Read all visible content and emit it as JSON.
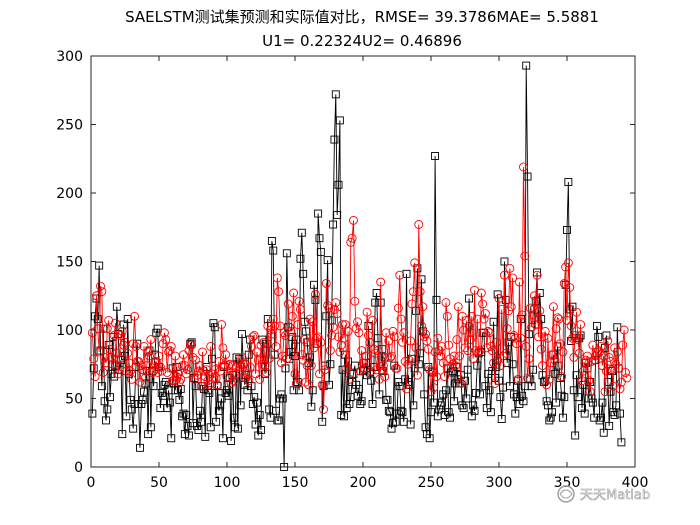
{
  "chart_data": {
    "type": "line",
    "title_lines": [
      "SAELSTM测试集预测和实际值对比，RMSE= 39.3786MAE= 5.5881",
      "U1= 0.22324U2= 0.46896"
    ],
    "xlabel": "",
    "ylabel": "",
    "xlim": [
      0,
      400
    ],
    "ylim": [
      0,
      300
    ],
    "xticks": [
      0,
      50,
      100,
      150,
      200,
      250,
      300,
      350,
      400
    ],
    "yticks": [
      0,
      50,
      100,
      150,
      200,
      250,
      300
    ],
    "grid": false,
    "legend": "none",
    "num_points": 396,
    "series": [
      {
        "role": "actual",
        "color": "#000000",
        "marker": "square",
        "values": [
          39,
          72,
          110,
          123,
          108,
          147,
          85,
          59,
          101,
          48,
          34,
          42,
          89,
          51,
          68,
          95,
          66,
          74,
          117,
          97,
          71,
          78,
          24,
          104,
          81,
          37,
          108,
          68,
          49,
          42,
          28,
          46,
          73,
          90,
          46,
          14,
          46,
          49,
          55,
          61,
          70,
          24,
          85,
          29,
          70,
          59,
          82,
          98,
          101,
          73,
          43,
          54,
          52,
          60,
          62,
          43,
          56,
          47,
          21,
          72,
          61,
          56,
          73,
          56,
          49,
          57,
          37,
          39,
          24,
          38,
          30,
          23,
          90,
          91,
          32,
          65,
          59,
          30,
          27,
          41,
          33,
          59,
          57,
          22,
          73,
          56,
          54,
          29,
          79,
          105,
          102,
          33,
          59,
          41,
          45,
          50,
          21,
          73,
          54,
          56,
          52,
          65,
          19,
          67,
          36,
          29,
          80,
          28,
          79,
          45,
          97,
          75,
          60,
          67,
          56,
          82,
          93,
          59,
          46,
          51,
          31,
          47,
          23,
          38,
          27,
          93,
          78,
          68,
          90,
          108,
          42,
          36,
          165,
          158,
          82,
          41,
          34,
          34,
          50,
          53,
          50,
          0,
          72,
          156,
          102,
          79,
          84,
          95,
          56,
          81,
          93,
          62,
          56,
          152,
          171,
          141,
          106,
          99,
          91,
          76,
          80,
          44,
          56,
          133,
          122,
          90,
          185,
          167,
          157,
          33,
          59,
          74,
          110,
          151,
          60,
          75,
          107,
          177,
          239,
          272,
          184,
          206,
          253,
          38,
          71,
          37,
          82,
          43,
          77,
          46,
          51,
          62,
          68,
          74,
          60,
          52,
          57,
          46,
          48,
          70,
          71,
          76,
          67,
          103,
          69,
          63,
          46,
          73,
          120,
          127,
          94,
          53,
          120,
          86,
          70,
          80,
          49,
          49,
          41,
          40,
          28,
          32,
          74,
          33,
          39,
          62,
          59,
          41,
          40,
          33,
          64,
          141,
          62,
          60,
          31,
          79,
          45,
          72,
          114,
          145,
          75,
          83,
          137,
          99,
          53,
          29,
          24,
          73,
          21,
          40,
          69,
          47,
          227,
          122,
          37,
          42,
          45,
          47,
          53,
          38,
          56,
          72,
          40,
          36,
          69,
          70,
          48,
          61,
          73,
          64,
          61,
          67,
          45,
          43,
          63,
          50,
          71,
          123,
          98,
          37,
          45,
          41,
          54,
          74,
          83,
          53,
          84,
          98,
          98,
          59,
          43,
          68,
          56,
          40,
          70,
          106,
          65,
          73,
          126,
          63,
          51,
          35,
          58,
          150,
          122,
          76,
          91,
          59,
          95,
          75,
          53,
          39,
          51,
          63,
          46,
          108,
          52,
          48,
          59,
          293,
          212,
          97,
          64,
          59,
          71,
          115,
          121,
          142,
          104,
          127,
          108,
          67,
          62,
          63,
          48,
          45,
          34,
          36,
          40,
          82,
          68,
          47,
          88,
          74,
          65,
          52,
          36,
          51,
          133,
          173,
          208,
          115,
          92,
          117,
          56,
          23,
          67,
          51,
          94,
          96,
          43,
          60,
          39,
          76,
          72,
          50,
          62,
          50,
          47,
          36,
          78,
          103,
          95,
          34,
          36,
          47,
          25,
          87,
          96,
          62,
          30,
          55,
          70,
          40,
          38,
          45,
          102,
          72,
          39,
          18
        ]
      },
      {
        "role": "predicted",
        "color": "#ff0000",
        "marker": "circle",
        "values": [
          98,
          79,
          66,
          125,
          101,
          84,
          132,
          128,
          69,
          80,
          76,
          101,
          107,
          86,
          80,
          75,
          96,
          105,
          83,
          68,
          79,
          96,
          99,
          89,
          91,
          70,
          83,
          76,
          70,
          64,
          90,
          110,
          88,
          77,
          77,
          62,
          74,
          71,
          88,
          65,
          74,
          84,
          81,
          93,
          69,
          70,
          76,
          77,
          69,
          81,
          73,
          70,
          90,
          98,
          93,
          69,
          84,
          85,
          88,
          63,
          63,
          81,
          66,
          68,
          62,
          64,
          74,
          82,
          74,
          68,
          71,
          85,
          89,
          89,
          80,
          64,
          78,
          67,
          70,
          74,
          59,
          84,
          70,
          66,
          71,
          63,
          60,
          88,
          68,
          65,
          71,
          65,
          60,
          77,
          70,
          104,
          87,
          74,
          82,
          66,
          74,
          75,
          61,
          74,
          63,
          67,
          73,
          76,
          70,
          73,
          80,
          75,
          76,
          65,
          68,
          63,
          73,
          88,
          95,
          96,
          68,
          84,
          78,
          64,
          89,
          75,
          91,
          74,
          69,
          103,
          79,
          100,
          97,
          108,
          103,
          88,
          138,
          128,
          103,
          76,
          81,
          98,
          96,
          79,
          119,
          102,
          99,
          110,
          127,
          68,
          61,
          104,
          121,
          115,
          82,
          78,
          93,
          62,
          74,
          60,
          108,
          74,
          106,
          87,
          126,
          94,
          95,
          68,
          91,
          60,
          42,
          71,
          134,
          118,
          116,
          85,
          96,
          102,
          115,
          120,
          112,
          95,
          84,
          89,
          104,
          94,
          104,
          72,
          99,
          64,
          164,
          167,
          180,
          121,
          101,
          106,
          98,
          70,
          85,
          76,
          72,
          81,
          113,
          96,
          91,
          70,
          107,
          86,
          83,
          71,
          85,
          64,
          135,
          71,
          74,
          66,
          98,
          80,
          92,
          80,
          81,
          99,
          95,
          72,
          72,
          116,
          140,
          108,
          91,
          98,
          77,
          57,
          75,
          78,
          92,
          119,
          128,
          149,
          87,
          67,
          177,
          128,
          103,
          117,
          95,
          97,
          92,
          86,
          71,
          55,
          70,
          58,
          84,
          66,
          94,
          85,
          81,
          88,
          76,
          66,
          120,
          110,
          89,
          79,
          73,
          75,
          81,
          74,
          93,
          117,
          81,
          61,
          110,
          100,
          87,
          107,
          85,
          103,
          93,
          110,
          79,
          129,
          85,
          108,
          84,
          85,
          127,
          119,
          108,
          112,
          87,
          99,
          98,
          88,
          85,
          76,
          61,
          91,
          78,
          123,
          74,
          115,
          81,
          140,
          83,
          101,
          114,
          145,
          117,
          138,
          96,
          94,
          90,
          64,
          135,
          94,
          111,
          219,
          154,
          88,
          65,
          79,
          116,
          102,
          111,
          125,
          104,
          140,
          95,
          114,
          86,
          74,
          95,
          99,
          60,
          94,
          64,
          76,
          82,
          117,
          78,
          101,
          109,
          108,
          90,
          66,
          84,
          134,
          146,
          107,
          149,
          131,
          103,
          94,
          80,
          96,
          113,
          93,
          83,
          104,
          63,
          70,
          76,
          78,
          81,
          63,
          55,
          77,
          89,
          78,
          81,
          82,
          85,
          84,
          88,
          74,
          81,
          55,
          70,
          92,
          80,
          77,
          71,
          59,
          87,
          75,
          84,
          72,
          57,
          62,
          89,
          100,
          69,
          65
        ]
      }
    ]
  },
  "watermark": {
    "text": "天天Matlab",
    "icon": "wechat-channel-icon"
  }
}
